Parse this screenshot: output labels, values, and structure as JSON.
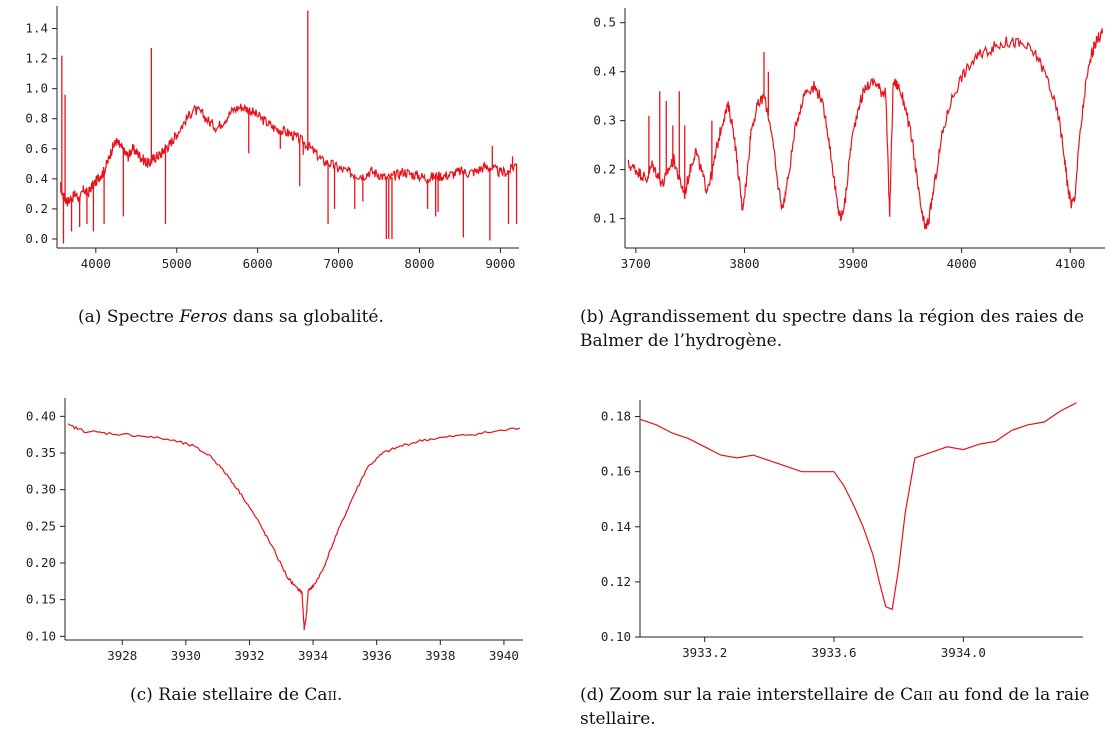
{
  "colors": {
    "line": "#e8121b",
    "axis": "#222222"
  },
  "chart_data": [
    {
      "id": "a",
      "type": "line",
      "title": "",
      "xlabel": "",
      "ylabel": "",
      "xlim": [
        3520,
        9230
      ],
      "ylim": [
        -0.06,
        1.55
      ],
      "xticks": [
        4000,
        5000,
        6000,
        7000,
        8000,
        9000
      ],
      "xtick_labels": [
        "4000",
        "5000",
        "6000",
        "7000",
        "8000",
        "9000"
      ],
      "yticks": [
        0.0,
        0.2,
        0.4,
        0.6,
        0.8,
        1.0,
        1.2,
        1.4
      ],
      "ytick_labels": [
        "0.0",
        "0.2",
        "0.4",
        "0.6",
        "0.8",
        "1.0",
        "1.2",
        "1.4"
      ],
      "grid": false,
      "noise": 0.035,
      "series": [
        {
          "x": [
            3560,
            3600,
            3650,
            3700,
            3750,
            3800,
            3850,
            3900,
            3950,
            4000,
            4050,
            4100,
            4150,
            4200,
            4250,
            4300,
            4350,
            4400,
            4450,
            4500,
            4550,
            4600,
            4650,
            4700,
            4750,
            4800,
            4850,
            4900,
            4950,
            5000,
            5100,
            5200,
            5300,
            5400,
            5500,
            5600,
            5700,
            5800,
            5900,
            6000,
            6100,
            6200,
            6300,
            6400,
            6500,
            6600,
            6700,
            6800,
            6900,
            7000,
            7100,
            7200,
            7300,
            7400,
            7500,
            7600,
            7700,
            7800,
            7900,
            8000,
            8100,
            8200,
            8300,
            8400,
            8500,
            8600,
            8700,
            8800,
            8900,
            9000,
            9100,
            9200
          ],
          "y": [
            0.35,
            0.28,
            0.25,
            0.27,
            0.3,
            0.26,
            0.33,
            0.3,
            0.35,
            0.38,
            0.42,
            0.45,
            0.52,
            0.6,
            0.65,
            0.62,
            0.58,
            0.55,
            0.6,
            0.58,
            0.55,
            0.52,
            0.5,
            0.53,
            0.55,
            0.56,
            0.6,
            0.62,
            0.66,
            0.7,
            0.78,
            0.86,
            0.84,
            0.78,
            0.74,
            0.8,
            0.86,
            0.88,
            0.86,
            0.82,
            0.78,
            0.74,
            0.72,
            0.7,
            0.67,
            0.63,
            0.58,
            0.52,
            0.5,
            0.47,
            0.45,
            0.43,
            0.42,
            0.45,
            0.43,
            0.4,
            0.42,
            0.45,
            0.43,
            0.42,
            0.4,
            0.42,
            0.42,
            0.43,
            0.45,
            0.44,
            0.45,
            0.48,
            0.47,
            0.44,
            0.45,
            0.5
          ]
        }
      ],
      "spikes": [
        {
          "x": 3580,
          "y": 1.22
        },
        {
          "x": 3620,
          "y": 0.96
        },
        {
          "x": 3600,
          "y": -0.03
        },
        {
          "x": 3700,
          "y": 0.05
        },
        {
          "x": 3800,
          "y": 0.08
        },
        {
          "x": 3890,
          "y": 0.1
        },
        {
          "x": 3970,
          "y": 0.05
        },
        {
          "x": 4102,
          "y": 0.1
        },
        {
          "x": 4340,
          "y": 0.15
        },
        {
          "x": 4686,
          "y": 1.27
        },
        {
          "x": 4861,
          "y": 0.1
        },
        {
          "x": 5890,
          "y": 0.57
        },
        {
          "x": 6280,
          "y": 0.6
        },
        {
          "x": 6520,
          "y": 0.35
        },
        {
          "x": 6563,
          "y": 0.56
        },
        {
          "x": 6620,
          "y": 1.52
        },
        {
          "x": 6870,
          "y": 0.1
        },
        {
          "x": 6950,
          "y": 0.2
        },
        {
          "x": 7200,
          "y": 0.2
        },
        {
          "x": 7300,
          "y": 0.25
        },
        {
          "x": 7590,
          "y": 0.0
        },
        {
          "x": 7620,
          "y": 0.0
        },
        {
          "x": 7660,
          "y": 0.0
        },
        {
          "x": 8100,
          "y": 0.2
        },
        {
          "x": 8200,
          "y": 0.15
        },
        {
          "x": 8230,
          "y": 0.18
        },
        {
          "x": 8542,
          "y": 0.01
        },
        {
          "x": 8870,
          "y": -0.01
        },
        {
          "x": 8900,
          "y": 0.62
        },
        {
          "x": 9100,
          "y": 0.1
        },
        {
          "x": 9150,
          "y": 0.55
        },
        {
          "x": 9200,
          "y": 0.1
        }
      ]
    },
    {
      "id": "b",
      "type": "line",
      "title": "",
      "xlabel": "",
      "ylabel": "",
      "xlim": [
        3690,
        4132
      ],
      "ylim": [
        0.04,
        0.53
      ],
      "xticks": [
        3700,
        3800,
        3900,
        4000,
        4100
      ],
      "xtick_labels": [
        "3700",
        "3800",
        "3900",
        "4000",
        "4100"
      ],
      "yticks": [
        0.1,
        0.2,
        0.3,
        0.4,
        0.5
      ],
      "ytick_labels": [
        "0.1",
        "0.2",
        "0.3",
        "0.4",
        "0.5"
      ],
      "grid": false,
      "noise": 0.012,
      "series": [
        {
          "x": [
            3693,
            3700,
            3705,
            3710,
            3715,
            3720,
            3725,
            3730,
            3735,
            3740,
            3745,
            3750,
            3755,
            3760,
            3765,
            3770,
            3775,
            3780,
            3785,
            3790,
            3795,
            3798,
            3802,
            3806,
            3812,
            3818,
            3825,
            3830,
            3835,
            3840,
            3848,
            3856,
            3864,
            3870,
            3876,
            3882,
            3886,
            3889,
            3893,
            3898,
            3905,
            3912,
            3920,
            3926,
            3930,
            3933.7,
            3937,
            3942,
            3948,
            3955,
            3960,
            3964,
            3967,
            3970,
            3975,
            3982,
            3990,
            4000,
            4010,
            4020,
            4030,
            4040,
            4050,
            4060,
            4070,
            4080,
            4090,
            4095,
            4098,
            4101,
            4104,
            4108,
            4114,
            4120,
            4126,
            4130
          ],
          "y": [
            0.21,
            0.2,
            0.19,
            0.18,
            0.21,
            0.19,
            0.17,
            0.2,
            0.22,
            0.18,
            0.15,
            0.2,
            0.24,
            0.2,
            0.16,
            0.19,
            0.25,
            0.3,
            0.33,
            0.28,
            0.18,
            0.12,
            0.18,
            0.28,
            0.33,
            0.35,
            0.28,
            0.18,
            0.12,
            0.18,
            0.3,
            0.36,
            0.37,
            0.35,
            0.29,
            0.19,
            0.12,
            0.1,
            0.14,
            0.25,
            0.33,
            0.37,
            0.38,
            0.36,
            0.36,
            0.11,
            0.38,
            0.37,
            0.33,
            0.25,
            0.16,
            0.1,
            0.08,
            0.1,
            0.17,
            0.27,
            0.34,
            0.39,
            0.42,
            0.44,
            0.45,
            0.46,
            0.46,
            0.45,
            0.43,
            0.38,
            0.3,
            0.22,
            0.16,
            0.13,
            0.14,
            0.25,
            0.37,
            0.44,
            0.47,
            0.48
          ]
        }
      ],
      "spikes": [
        {
          "x": 3712,
          "y": 0.31
        },
        {
          "x": 3722,
          "y": 0.36
        },
        {
          "x": 3728,
          "y": 0.34
        },
        {
          "x": 3734,
          "y": 0.29
        },
        {
          "x": 3740,
          "y": 0.36
        },
        {
          "x": 3745,
          "y": 0.29
        },
        {
          "x": 3770,
          "y": 0.3
        },
        {
          "x": 3818,
          "y": 0.44
        },
        {
          "x": 3822,
          "y": 0.4
        }
      ]
    },
    {
      "id": "c",
      "type": "line",
      "title": "",
      "xlabel": "",
      "ylabel": "",
      "xlim": [
        3926.2,
        3940.6
      ],
      "ylim": [
        0.095,
        0.425
      ],
      "xticks": [
        3928,
        3930,
        3932,
        3934,
        3936,
        3938,
        3940
      ],
      "xtick_labels": [
        "3928",
        "3930",
        "3932",
        "3934",
        "3936",
        "3938",
        "3940"
      ],
      "yticks": [
        0.1,
        0.15,
        0.2,
        0.25,
        0.3,
        0.35,
        0.4
      ],
      "ytick_labels": [
        "0.10",
        "0.15",
        "0.20",
        "0.25",
        "0.30",
        "0.35",
        "0.40"
      ],
      "grid": false,
      "noise": 0.002,
      "series": [
        {
          "x": [
            3926.3,
            3926.8,
            3927.5,
            3928.5,
            3929.5,
            3930.2,
            3930.8,
            3931.3,
            3931.8,
            3932.3,
            3932.8,
            3933.2,
            3933.5,
            3933.65,
            3933.72,
            3933.78,
            3933.85,
            3934.0,
            3934.3,
            3934.7,
            3935.2,
            3935.7,
            3936.2,
            3936.8,
            3937.5,
            3938.5,
            3939.5,
            3940.5
          ],
          "y": [
            0.388,
            0.38,
            0.377,
            0.374,
            0.368,
            0.36,
            0.345,
            0.32,
            0.29,
            0.255,
            0.215,
            0.18,
            0.165,
            0.16,
            0.11,
            0.125,
            0.163,
            0.168,
            0.19,
            0.235,
            0.285,
            0.33,
            0.35,
            0.36,
            0.368,
            0.373,
            0.378,
            0.384
          ]
        }
      ],
      "spikes": []
    },
    {
      "id": "d",
      "type": "line",
      "title": "",
      "xlabel": "",
      "ylabel": "",
      "xlim": [
        3933.0,
        3934.37
      ],
      "ylim": [
        0.1,
        0.186
      ],
      "xticks": [
        3933.2,
        3933.6,
        3934.0
      ],
      "xtick_labels": [
        "3933.2",
        "3933.6",
        "3934.0"
      ],
      "yticks": [
        0.1,
        0.12,
        0.14,
        0.16,
        0.18
      ],
      "ytick_labels": [
        "0.10",
        "0.12",
        "0.14",
        "0.16",
        "0.18"
      ],
      "grid": false,
      "noise": 0,
      "series": [
        {
          "x": [
            3933.0,
            3933.05,
            3933.1,
            3933.15,
            3933.2,
            3933.25,
            3933.3,
            3933.35,
            3933.4,
            3933.45,
            3933.5,
            3933.55,
            3933.6,
            3933.63,
            3933.66,
            3933.69,
            3933.72,
            3933.74,
            3933.76,
            3933.78,
            3933.8,
            3933.82,
            3933.85,
            3933.9,
            3933.95,
            3934.0,
            3934.05,
            3934.1,
            3934.15,
            3934.2,
            3934.25,
            3934.3,
            3934.35
          ],
          "y": [
            0.179,
            0.177,
            0.174,
            0.172,
            0.169,
            0.166,
            0.165,
            0.166,
            0.164,
            0.162,
            0.16,
            0.16,
            0.16,
            0.155,
            0.148,
            0.14,
            0.13,
            0.12,
            0.111,
            0.11,
            0.125,
            0.145,
            0.165,
            0.167,
            0.169,
            0.168,
            0.17,
            0.171,
            0.175,
            0.177,
            0.178,
            0.182,
            0.185
          ]
        }
      ],
      "spikes": []
    }
  ],
  "captions": {
    "a": {
      "tag": "(a)",
      "pre": "Spectre",
      "em": "Feros",
      "post": "dans sa globalité."
    },
    "b": {
      "text": "(b) Agrandissement du spectre dans la région des raies de Balmer de l’hydrogène."
    },
    "c": {
      "pre": "(c) Raie stellaire de Ca",
      "sc": "ii",
      "post": "."
    },
    "d": {
      "pre": "(d) Zoom sur la raie interstellaire de Ca",
      "sc": "ii",
      "post": "au fond de la raie stellaire."
    }
  }
}
